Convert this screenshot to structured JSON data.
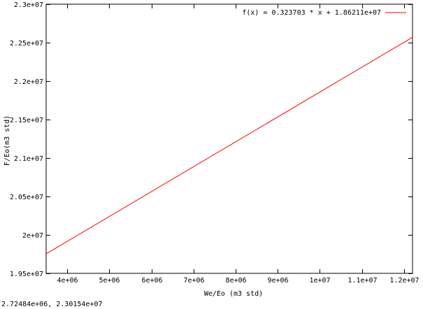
{
  "chart_data": {
    "type": "line",
    "xlabel": "We/Eo (m3 std)",
    "ylabel": "F/Eo(m3 std)",
    "xlim": [
      3500000,
      12200000
    ],
    "ylim": [
      19500000,
      23000000
    ],
    "x_ticks": [
      4000000,
      5000000,
      6000000,
      7000000,
      8000000,
      9000000,
      10000000,
      11000000,
      12000000
    ],
    "x_tick_labels": [
      "4e+06",
      "5e+06",
      "6e+06",
      "7e+06",
      "8e+06",
      "9e+06",
      "1e+07",
      "1.1e+07",
      "1.2e+07"
    ],
    "y_ticks": [
      19500000,
      20000000,
      20500000,
      21000000,
      21500000,
      22000000,
      22500000,
      23000000
    ],
    "y_tick_labels": [
      "1.95e+07",
      "2e+07",
      "2.05e+07",
      "2.1e+07",
      "2.15e+07",
      "2.2e+07",
      "2.25e+07",
      "2.3e+07"
    ],
    "grid": false,
    "legend_position": "top-right",
    "series": [
      {
        "name": "f(x) = 0.323703 * x + 1.86211e+07",
        "color": "#ff0000",
        "x": [
          3500000,
          12200000
        ],
        "y": [
          19754060,
          22570277
        ]
      }
    ]
  },
  "status_bar": {
    "coordinates": "2.72484e+06,  2.30154e+07"
  }
}
